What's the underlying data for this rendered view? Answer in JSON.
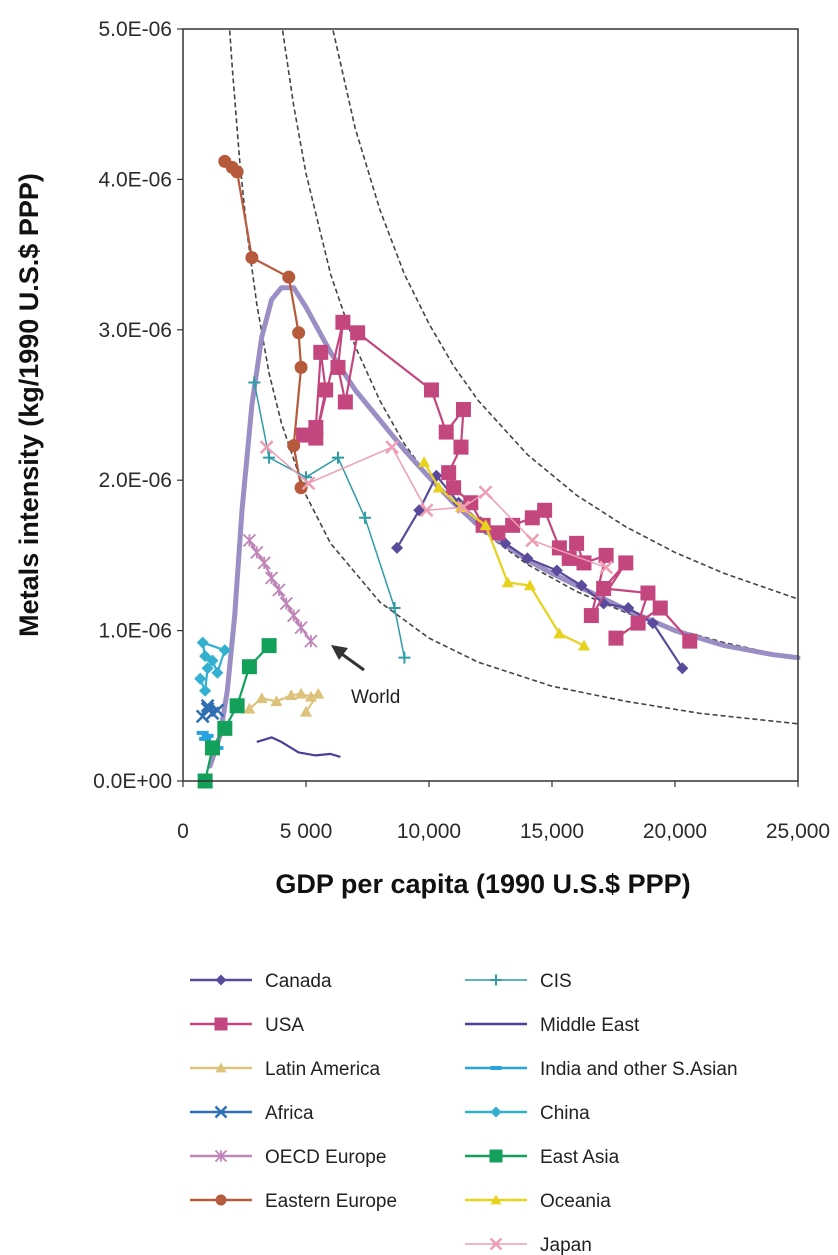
{
  "chart_data": {
    "type": "line",
    "xlabel": "GDP per capita (1990 U.S.$ PPP)",
    "ylabel": "Metals intensity (kg/1990 U.S.$ PPP)",
    "xlim": [
      0,
      25000
    ],
    "ylim": [
      0,
      5e-06
    ],
    "x_ticks": [
      0,
      5000,
      10000,
      15000,
      20000,
      25000
    ],
    "x_tick_labels": [
      "0",
      "5 000",
      "10,000",
      "15,000",
      "20,000",
      "25,000"
    ],
    "y_ticks": [
      0,
      1e-06,
      2e-06,
      3e-06,
      4e-06,
      5e-06
    ],
    "y_tick_labels": [
      "0.0E+00",
      "1.0E-06",
      "2.0E-06",
      "3.0E-06",
      "4.0E-06",
      "5.0E-06"
    ],
    "grid": false,
    "legend_position": "bottom",
    "annotations": [
      {
        "text": "World",
        "x": 6700,
        "y": 6e-07
      }
    ],
    "world_curve": {
      "color": "#9b8ec4",
      "x": [
        1100,
        1500,
        1800,
        2100,
        2400,
        2800,
        3200,
        3600,
        4000,
        4500,
        5000,
        5500,
        6000,
        7000,
        8000,
        9000,
        10000,
        11000,
        12000,
        13000,
        14000,
        15000,
        16000,
        17000,
        18000,
        19000,
        20000,
        21000,
        22000,
        23000,
        24000,
        25000
      ],
      "y": [
        1e-07,
        3e-07,
        6e-07,
        1.1e-06,
        1.8e-06,
        2.5e-06,
        2.95e-06,
        3.2e-06,
        3.28e-06,
        3.28e-06,
        3.15e-06,
        3e-06,
        2.85e-06,
        2.6e-06,
        2.4e-06,
        2.2e-06,
        2.02e-06,
        1.85e-06,
        1.7e-06,
        1.58e-06,
        1.47e-06,
        1.38e-06,
        1.3e-06,
        1.22e-06,
        1.14e-06,
        1.07e-06,
        1e-06,
        9.5e-07,
        9e-07,
        8.7e-07,
        8.4e-07,
        8.2e-07
      ]
    },
    "iso_curves": [
      {
        "name": "",
        "x": [
          1900,
          2000,
          2300,
          2600,
          3000,
          3500,
          4000,
          5000,
          6000,
          8000,
          10000,
          12000,
          15000,
          18000,
          21000,
          25000
        ],
        "y": [
          4.99e-06,
          4.75e-06,
          4.13e-06,
          3.65e-06,
          3.17e-06,
          2.71e-06,
          2.38e-06,
          1.9e-06,
          1.58e-06,
          1.19e-06,
          9.5e-07,
          7.9e-07,
          6.3e-07,
          5.3e-07,
          4.5e-07,
          3.8e-07
        ]
      },
      {
        "name": "",
        "x": [
          4050,
          4500,
          5000,
          6000,
          7000,
          8000,
          9000,
          10000,
          12000,
          14000,
          16000,
          18000,
          20000,
          22000,
          25000
        ],
        "y": [
          4.99e-06,
          4.49e-06,
          4.04e-06,
          3.37e-06,
          2.89e-06,
          2.53e-06,
          2.24e-06,
          2.02e-06,
          1.68e-06,
          1.44e-06,
          1.26e-06,
          1.12e-06,
          1.01e-06,
          9.2e-07,
          8.1e-07
        ]
      },
      {
        "name": "",
        "x": [
          6100,
          7000,
          8000,
          9000,
          10000,
          11000,
          12000,
          14000,
          16000,
          18000,
          20000,
          22000,
          25000
        ],
        "y": [
          4.99e-06,
          4.34e-06,
          3.8e-06,
          3.37e-06,
          3.04e-06,
          2.76e-06,
          2.53e-06,
          2.17e-06,
          1.9e-06,
          1.69e-06,
          1.52e-06,
          1.38e-06,
          1.21e-06
        ]
      }
    ],
    "series": [
      {
        "name": "Canada",
        "color": "#5a4a9c",
        "marker": "diamond",
        "x": [
          8700,
          9600,
          10300,
          11200,
          12100,
          13100,
          14000,
          15200,
          16200,
          17100,
          18100,
          19100,
          20300
        ],
        "y": [
          1.55e-06,
          1.8e-06,
          2.03e-06,
          1.85e-06,
          1.72e-06,
          1.58e-06,
          1.48e-06,
          1.4e-06,
          1.3e-06,
          1.18e-06,
          1.15e-06,
          1.05e-06,
          7.5e-07
        ]
      },
      {
        "name": "USA",
        "color": "#c4467f",
        "marker": "square",
        "x": [
          4900,
          5400,
          5600,
          5800,
          5400,
          6500,
          6300,
          6600,
          7100,
          10100,
          10700,
          11400,
          11300,
          10800,
          11000,
          11700,
          12200,
          12800,
          13400,
          14200,
          14700,
          15300,
          15700,
          16000,
          16300,
          17200,
          16600,
          18000,
          17100,
          18900,
          18500,
          17600,
          19400,
          20600
        ],
        "y": [
          2.3e-06,
          2.35e-06,
          2.85e-06,
          2.6e-06,
          2.28e-06,
          3.05e-06,
          2.75e-06,
          2.52e-06,
          2.98e-06,
          2.6e-06,
          2.32e-06,
          2.47e-06,
          2.22e-06,
          2.05e-06,
          1.95e-06,
          1.85e-06,
          1.7e-06,
          1.65e-06,
          1.7e-06,
          1.75e-06,
          1.8e-06,
          1.55e-06,
          1.48e-06,
          1.58e-06,
          1.45e-06,
          1.5e-06,
          1.1e-06,
          1.45e-06,
          1.28e-06,
          1.25e-06,
          1.05e-06,
          9.5e-07,
          1.15e-06,
          9.3e-07
        ]
      },
      {
        "name": "Latin America",
        "color": "#dcc27a",
        "marker": "triangle",
        "x": [
          2700,
          3200,
          3800,
          4400,
          4800,
          5200,
          5500,
          5000
        ],
        "y": [
          4.8e-07,
          5.5e-07,
          5.3e-07,
          5.7e-07,
          5.8e-07,
          5.6e-07,
          5.8e-07,
          4.6e-07
        ]
      },
      {
        "name": "Africa",
        "color": "#2f70b2",
        "marker": "x",
        "x": [
          800,
          1000,
          1200,
          1400,
          1000
        ],
        "y": [
          4.3e-07,
          4.8e-07,
          4.5e-07,
          4.7e-07,
          5e-07
        ]
      },
      {
        "name": "OECD Europe",
        "color": "#c085b8",
        "marker": "asterisk",
        "x": [
          2700,
          3000,
          3300,
          3600,
          3900,
          4200,
          4500,
          4800,
          5200
        ],
        "y": [
          1.6e-06,
          1.52e-06,
          1.45e-06,
          1.35e-06,
          1.27e-06,
          1.18e-06,
          1.1e-06,
          1.02e-06,
          9.3e-07
        ]
      },
      {
        "name": "Eastern Europe",
        "color": "#b75a3b",
        "marker": "circle",
        "x": [
          1700,
          2000,
          2200,
          2800,
          4300,
          4700,
          4800,
          4500,
          4800
        ],
        "y": [
          4.12e-06,
          4.08e-06,
          4.05e-06,
          3.48e-06,
          3.35e-06,
          2.98e-06,
          2.75e-06,
          2.23e-06,
          1.95e-06
        ]
      },
      {
        "name": "CIS",
        "color": "#2f9ba5",
        "marker": "plus",
        "x": [
          2900,
          3500,
          5000,
          6300,
          7400,
          8600,
          9000
        ],
        "y": [
          2.65e-06,
          2.15e-06,
          2.02e-06,
          2.15e-06,
          1.75e-06,
          1.15e-06,
          8.2e-07
        ]
      },
      {
        "name": "Middle East",
        "color": "#4b4098",
        "marker": "none",
        "x": [
          3000,
          3600,
          4000,
          4700,
          5400,
          6000,
          6400
        ],
        "y": [
          2.6e-07,
          2.9e-07,
          2.6e-07,
          1.9e-07,
          1.7e-07,
          1.8e-07,
          1.6e-07
        ]
      },
      {
        "name": "India and other S.Asian",
        "color": "#29a3e0",
        "marker": "dash",
        "x": [
          800,
          900,
          1000,
          1200,
          1400
        ],
        "y": [
          3.2e-07,
          2.8e-07,
          3e-07,
          2.4e-07,
          2.2e-07
        ]
      },
      {
        "name": "China",
        "color": "#33b0d0",
        "marker": "diamond",
        "x": [
          700,
          900,
          1000,
          1200,
          1400,
          1700,
          800,
          900
        ],
        "y": [
          6.8e-07,
          6e-07,
          7.5e-07,
          8e-07,
          7.2e-07,
          8.7e-07,
          9.2e-07,
          8.3e-07
        ]
      },
      {
        "name": "East Asia",
        "color": "#13a05a",
        "marker": "square",
        "x": [
          900,
          1200,
          1700,
          2200,
          2700,
          3500
        ],
        "y": [
          0,
          2.2e-07,
          3.5e-07,
          5e-07,
          7.6e-07,
          9e-07
        ]
      },
      {
        "name": "Oceania",
        "color": "#e8d21e",
        "marker": "triangle",
        "x": [
          9800,
          10400,
          11300,
          12300,
          13200,
          14100,
          15300,
          16300
        ],
        "y": [
          2.12e-06,
          1.95e-06,
          1.82e-06,
          1.7e-06,
          1.32e-06,
          1.3e-06,
          9.8e-07,
          9e-07
        ]
      },
      {
        "name": "Japan",
        "color": "#ee9db3",
        "marker": "x",
        "x": [
          3400,
          5100,
          8500,
          9900,
          11400,
          12300,
          14200,
          17200
        ],
        "y": [
          2.22e-06,
          1.98e-06,
          2.22e-06,
          1.8e-06,
          1.82e-06,
          1.92e-06,
          1.6e-06,
          1.42e-06
        ]
      }
    ]
  }
}
